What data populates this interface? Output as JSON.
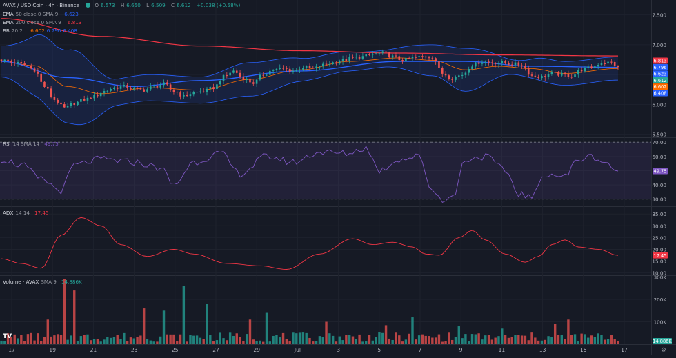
{
  "header": {
    "symbol": "AVAX / USD Coin · 4h · Binance",
    "ohlc": {
      "o_label": "O",
      "o": "6.573",
      "h_label": "H",
      "h": "6.650",
      "l_label": "L",
      "l": "6.509",
      "c_label": "C",
      "c": "6.612",
      "change": "+0.038 (+0.58%)"
    },
    "ema50": {
      "label": "EMA",
      "params": "50 close 0 SMA 9",
      "value": "6.623"
    },
    "ema200": {
      "label": "EMA",
      "params": "200 close 0 SMA 9",
      "value": "6.813"
    },
    "bb": {
      "label": "BB",
      "params": "20 2",
      "basis": "6.602",
      "upper": "6.796",
      "lower": "6.408"
    }
  },
  "rsi_header": {
    "label": "RSI",
    "params": "14 SMA 14",
    "value": "49.75"
  },
  "adx_header": {
    "label": "ADX",
    "params": "14 14",
    "value": "17.45"
  },
  "vol_header": {
    "label": "Volume · AVAX",
    "params": "SMA 9",
    "value": "14.886K"
  },
  "x_axis_labels": [
    "17",
    "19",
    "21",
    "23",
    "25",
    "27",
    "29",
    "Jul",
    "3",
    "5",
    "7",
    "9",
    "11",
    "13",
    "15",
    "17"
  ],
  "colors": {
    "up": "#26a69a",
    "down": "#ef5350",
    "ema50": "#2962ff",
    "ema200": "#f23645",
    "bb_band": "#2962ff",
    "bb_basis": "#ff6d00",
    "rsi": "#7e57c2",
    "adx": "#f23645",
    "bg": "#161a25",
    "grid": "#2a2e39"
  },
  "chart_data": [
    {
      "type": "candlestick",
      "title": "AVAX / USD Coin · 4h · Binance",
      "y_axis_ticks": [
        "7.500",
        "7.000",
        "6.500",
        "6.000",
        "5.500"
      ],
      "ylim": [
        5.45,
        7.75
      ],
      "price_labels": [
        {
          "name": "EMA 200",
          "value": "6.813",
          "color": "#f23645"
        },
        {
          "name": "BB upper",
          "value": "6.796",
          "color": "#2962ff"
        },
        {
          "name": "EMA 50",
          "value": "6.623",
          "color": "#2962ff"
        },
        {
          "name": "Close",
          "value": "6.612",
          "color": "#26a69a"
        },
        {
          "name": "BB basis",
          "value": "6.602",
          "color": "#ff6d00"
        },
        {
          "name": "BB lower",
          "value": "6.408",
          "color": "#2962ff"
        }
      ],
      "close_anchors": [
        [
          0,
          6.74
        ],
        [
          4,
          6.7
        ],
        [
          7,
          6.66
        ],
        [
          10,
          6.58
        ],
        [
          13,
          6.3
        ],
        [
          16,
          6.08
        ],
        [
          19,
          5.94
        ],
        [
          22,
          6.02
        ],
        [
          25,
          6.08
        ],
        [
          28,
          6.14
        ],
        [
          31,
          6.22
        ],
        [
          34,
          6.28
        ],
        [
          37,
          6.3
        ],
        [
          40,
          6.26
        ],
        [
          43,
          6.24
        ],
        [
          46,
          6.3
        ],
        [
          49,
          6.34
        ],
        [
          52,
          6.22
        ],
        [
          55,
          6.14
        ],
        [
          58,
          6.2
        ],
        [
          61,
          6.22
        ],
        [
          64,
          6.28
        ],
        [
          67,
          6.46
        ],
        [
          70,
          6.56
        ],
        [
          73,
          6.44
        ],
        [
          76,
          6.36
        ],
        [
          79,
          6.5
        ],
        [
          82,
          6.58
        ],
        [
          85,
          6.6
        ],
        [
          88,
          6.56
        ],
        [
          91,
          6.62
        ],
        [
          94,
          6.6
        ],
        [
          97,
          6.66
        ],
        [
          100,
          6.7
        ],
        [
          103,
          6.74
        ],
        [
          106,
          6.78
        ],
        [
          109,
          6.8
        ],
        [
          112,
          6.84
        ],
        [
          115,
          6.86
        ],
        [
          118,
          6.8
        ],
        [
          121,
          6.74
        ],
        [
          124,
          6.78
        ],
        [
          127,
          6.8
        ],
        [
          130,
          6.8
        ],
        [
          133,
          6.52
        ],
        [
          136,
          6.44
        ],
        [
          139,
          6.5
        ],
        [
          142,
          6.66
        ],
        [
          145,
          6.72
        ],
        [
          148,
          6.7
        ],
        [
          151,
          6.7
        ],
        [
          154,
          6.68
        ],
        [
          157,
          6.66
        ],
        [
          160,
          6.48
        ],
        [
          163,
          6.46
        ],
        [
          166,
          6.52
        ],
        [
          169,
          6.5
        ],
        [
          172,
          6.48
        ],
        [
          175,
          6.58
        ],
        [
          178,
          6.62
        ],
        [
          181,
          6.7
        ],
        [
          184,
          6.7
        ],
        [
          186,
          6.61
        ]
      ],
      "ema200_anchors": [
        [
          0,
          7.44
        ],
        [
          30,
          7.14
        ],
        [
          60,
          6.98
        ],
        [
          90,
          6.9
        ],
        [
          120,
          6.86
        ],
        [
          150,
          6.83
        ],
        [
          186,
          6.813
        ]
      ],
      "ema50_anchors": [
        [
          0,
          6.72
        ],
        [
          20,
          6.45
        ],
        [
          40,
          6.3
        ],
        [
          60,
          6.4
        ],
        [
          90,
          6.56
        ],
        [
          120,
          6.72
        ],
        [
          140,
          6.72
        ],
        [
          160,
          6.64
        ],
        [
          186,
          6.623
        ]
      ],
      "bb_basis_anchors": [
        [
          0,
          6.72
        ],
        [
          10,
          6.65
        ],
        [
          20,
          6.3
        ],
        [
          30,
          6.18
        ],
        [
          45,
          6.28
        ],
        [
          60,
          6.24
        ],
        [
          75,
          6.42
        ],
        [
          90,
          6.58
        ],
        [
          105,
          6.72
        ],
        [
          120,
          6.78
        ],
        [
          130,
          6.74
        ],
        [
          140,
          6.58
        ],
        [
          150,
          6.64
        ],
        [
          160,
          6.6
        ],
        [
          170,
          6.52
        ],
        [
          186,
          6.602
        ]
      ],
      "bb_width_anchors": [
        [
          0,
          0.26
        ],
        [
          15,
          0.58
        ],
        [
          22,
          0.62
        ],
        [
          35,
          0.22
        ],
        [
          60,
          0.22
        ],
        [
          75,
          0.28
        ],
        [
          95,
          0.18
        ],
        [
          115,
          0.14
        ],
        [
          130,
          0.26
        ],
        [
          140,
          0.36
        ],
        [
          155,
          0.12
        ],
        [
          165,
          0.2
        ],
        [
          186,
          0.194
        ]
      ]
    },
    {
      "type": "line",
      "title": "RSI 14 SMA 14",
      "y_axis_ticks": [
        "70.00",
        "60.00",
        "50.00",
        "40.00",
        "30.00"
      ],
      "ylim": [
        25,
        73
      ],
      "band": [
        30,
        70
      ],
      "value_label": "49.75",
      "anchors": [
        [
          0,
          58
        ],
        [
          6,
          54
        ],
        [
          12,
          44
        ],
        [
          18,
          36
        ],
        [
          22,
          54
        ],
        [
          30,
          58
        ],
        [
          40,
          56
        ],
        [
          48,
          52
        ],
        [
          52,
          40
        ],
        [
          58,
          56
        ],
        [
          66,
          62
        ],
        [
          72,
          48
        ],
        [
          80,
          60
        ],
        [
          88,
          56
        ],
        [
          96,
          63
        ],
        [
          104,
          62
        ],
        [
          110,
          66
        ],
        [
          114,
          50
        ],
        [
          120,
          58
        ],
        [
          126,
          60
        ],
        [
          130,
          36
        ],
        [
          133,
          30
        ],
        [
          136,
          31
        ],
        [
          140,
          58
        ],
        [
          146,
          60
        ],
        [
          152,
          50
        ],
        [
          156,
          34
        ],
        [
          160,
          31
        ],
        [
          164,
          48
        ],
        [
          170,
          46
        ],
        [
          174,
          58
        ],
        [
          178,
          60
        ],
        [
          182,
          56
        ],
        [
          186,
          49.75
        ]
      ]
    },
    {
      "type": "line",
      "title": "ADX 14 14",
      "y_axis_ticks": [
        "35.00",
        "30.00",
        "25.00",
        "20.00",
        "15.00",
        "10.00"
      ],
      "ylim": [
        9,
        38
      ],
      "value_label": "17.45",
      "anchors": [
        [
          0,
          16
        ],
        [
          6,
          14
        ],
        [
          12,
          12
        ],
        [
          18,
          26
        ],
        [
          24,
          33.5
        ],
        [
          30,
          30
        ],
        [
          36,
          22
        ],
        [
          44,
          17
        ],
        [
          52,
          20
        ],
        [
          58,
          18
        ],
        [
          68,
          14
        ],
        [
          78,
          13
        ],
        [
          86,
          11.5
        ],
        [
          96,
          18
        ],
        [
          106,
          24.5
        ],
        [
          112,
          22
        ],
        [
          118,
          23
        ],
        [
          124,
          21
        ],
        [
          128,
          18
        ],
        [
          132,
          17.5
        ],
        [
          138,
          25
        ],
        [
          142,
          28
        ],
        [
          146,
          24
        ],
        [
          152,
          18
        ],
        [
          158,
          14.5
        ],
        [
          162,
          17
        ],
        [
          166,
          22
        ],
        [
          170,
          24
        ],
        [
          174,
          21
        ],
        [
          180,
          20
        ],
        [
          186,
          17.45
        ]
      ]
    },
    {
      "type": "bar",
      "title": "Volume · AVAX SMA 9",
      "y_axis_ticks": [
        "300K",
        "200K",
        "100K"
      ],
      "ylim": [
        0,
        305000
      ],
      "value_label": "14.886K",
      "spikes": [
        [
          19,
          290000
        ],
        [
          14,
          110000
        ],
        [
          22,
          240000
        ],
        [
          55,
          260000
        ],
        [
          62,
          180000
        ],
        [
          43,
          160000
        ],
        [
          49,
          150000
        ],
        [
          80,
          140000
        ],
        [
          75,
          110000
        ],
        [
          124,
          120000
        ],
        [
          98,
          100000
        ],
        [
          138,
          80000
        ],
        [
          171,
          110000
        ],
        [
          167,
          90000
        ],
        [
          151,
          70000
        ],
        [
          116,
          85000
        ],
        [
          184,
          40000
        ]
      ],
      "base_level": 30000
    }
  ]
}
